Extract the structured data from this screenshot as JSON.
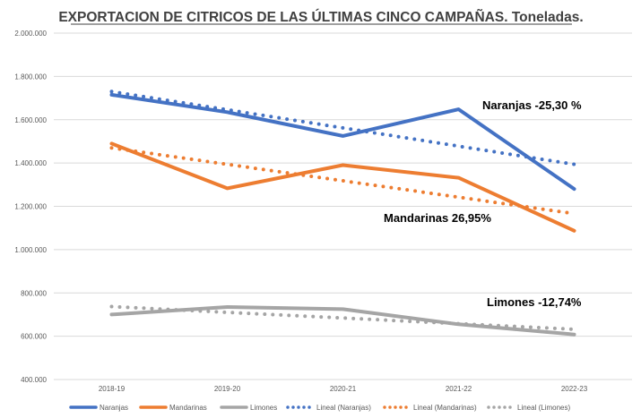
{
  "chart_data": {
    "type": "line",
    "title": "EXPORTACION DE CITRICOS  DE LAS ÚLTIMAS CINCO CAMPAÑAS. Toneladas.",
    "categories": [
      "2018-19",
      "2019-20",
      "2020-21",
      "2021-22",
      "2022-23"
    ],
    "ylim": [
      400000,
      2000000
    ],
    "yticks": [
      "400.000",
      "600.000",
      "800.000",
      "1.000.000",
      "1.200.000",
      "1.400.000",
      "1.600.000",
      "1.800.000",
      "2.000.000"
    ],
    "yticks_values": [
      400000,
      600000,
      800000,
      1000000,
      1200000,
      1400000,
      1600000,
      1800000,
      2000000
    ],
    "grid": true,
    "legend_position": "bottom",
    "series": [
      {
        "name": "Naranjas",
        "color": "#4472C4",
        "style": "solid",
        "values": [
          1715000,
          1635000,
          1525000,
          1648000,
          1280000
        ]
      },
      {
        "name": "Mandarinas",
        "color": "#ED7D31",
        "style": "solid",
        "values": [
          1490000,
          1283000,
          1390000,
          1332000,
          1087000
        ]
      },
      {
        "name": "Limones",
        "color": "#A5A5A5",
        "style": "solid",
        "values": [
          700000,
          735000,
          725000,
          655000,
          608000
        ]
      },
      {
        "name": "Lineal (Naranjas)",
        "color": "#4472C4",
        "style": "dotted",
        "values": [
          1730000,
          1646000,
          1562000,
          1478000,
          1394000
        ]
      },
      {
        "name": "Lineal (Mandarinas)",
        "color": "#ED7D31",
        "style": "dotted",
        "values": [
          1470000,
          1394000,
          1318000,
          1242000,
          1166000
        ]
      },
      {
        "name": "Lineal (Limones)",
        "color": "#A5A5A5",
        "style": "dotted",
        "values": [
          737000,
          710000,
          684000,
          658000,
          632000
        ]
      }
    ],
    "annotations": [
      {
        "text": "Naranjas  -25,30 %",
        "near": "Naranjas 2021-22"
      },
      {
        "text": "Mandarinas   26,95%",
        "near": "Mandarinas 2022-23"
      },
      {
        "text": "Limones  -12,74%",
        "near": "Limones 2021-22"
      }
    ]
  }
}
